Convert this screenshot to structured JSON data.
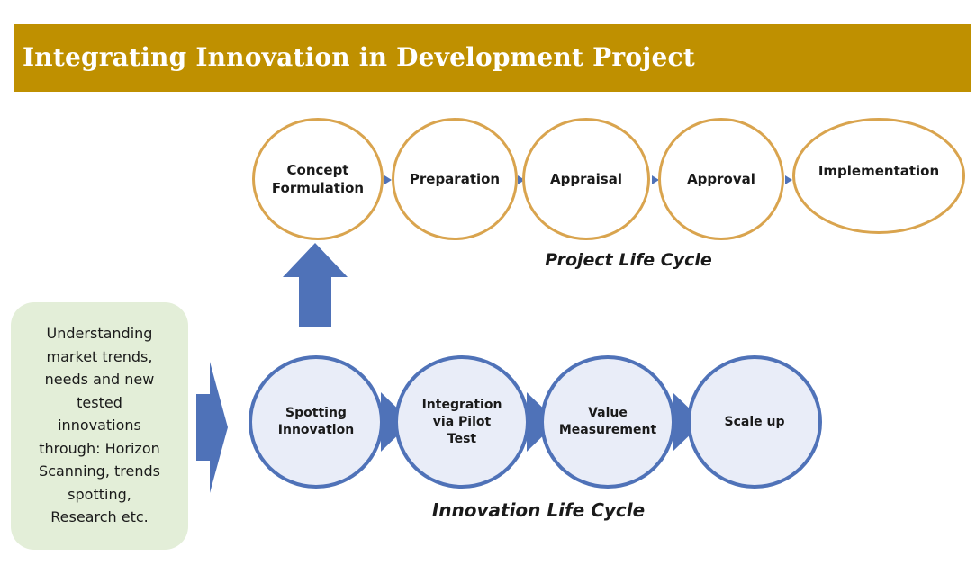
{
  "header": {
    "title": "Integrating Innovation in Development Project"
  },
  "project_cycle": {
    "caption": "Project Life Cycle",
    "stages": [
      "Concept Formulation",
      "Preparation",
      "Appraisal",
      "Approval",
      "Implementation"
    ]
  },
  "innovation_cycle": {
    "caption": "Innovation Life Cycle",
    "stages": [
      "Spotting Innovation",
      "Integration via Pilot Test",
      "Value Measurement",
      "Scale up"
    ]
  },
  "side_box": {
    "lines": [
      "Understanding",
      "market trends,",
      "needs and new",
      "tested",
      "innovations",
      "through: Horizon",
      "Scanning, trends",
      "spotting,",
      "Research etc."
    ]
  },
  "colors": {
    "banner": "#bf9000",
    "project_ring": "#d9a44e",
    "innovation_ring": "#4f72b8",
    "innovation_fill": "#e9edf8",
    "side_box": "#e3eed8"
  }
}
